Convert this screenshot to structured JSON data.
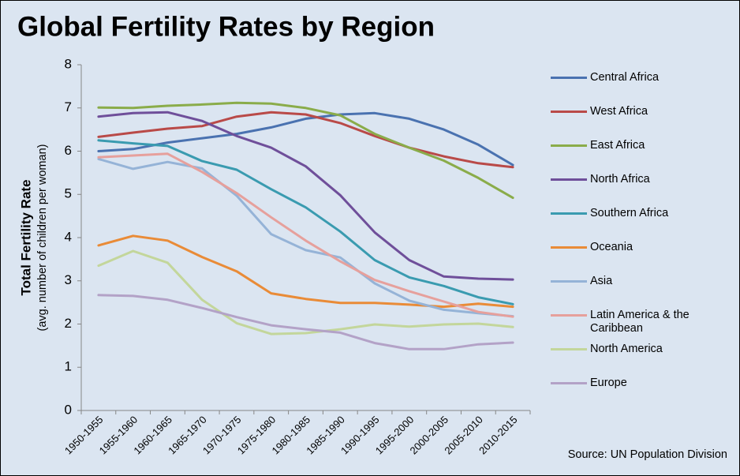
{
  "chart_data": {
    "type": "line",
    "title": "Global Fertility Rates by Region",
    "y_axis_label": "Total Fertility Rate",
    "y_axis_sublabel": "(avg. number of children per woman)",
    "source": "Source:  UN Population Division",
    "categories": [
      "1950-1955",
      "1955-1960",
      "1960-1965",
      "1965-1970",
      "1970-1975",
      "1975-1980",
      "1980-1985",
      "1985-1990",
      "1990-1995",
      "1995-2000",
      "2000-2005",
      "2005-2010",
      "2010-2015"
    ],
    "ylim": [
      0,
      8
    ],
    "yticks": [
      0,
      1,
      2,
      3,
      4,
      5,
      6,
      7,
      8
    ],
    "grid": false,
    "series": [
      {
        "name": "Central Africa",
        "color": "#4a72b0",
        "values": [
          6.0,
          6.05,
          6.2,
          6.3,
          6.4,
          6.55,
          6.75,
          6.85,
          6.88,
          6.75,
          6.5,
          6.15,
          5.68
        ]
      },
      {
        "name": "West Africa",
        "color": "#b94a48",
        "values": [
          6.33,
          6.43,
          6.52,
          6.58,
          6.8,
          6.9,
          6.85,
          6.65,
          6.35,
          6.08,
          5.88,
          5.72,
          5.63
        ]
      },
      {
        "name": "East Africa",
        "color": "#8aac4a",
        "values": [
          7.01,
          7.0,
          7.05,
          7.08,
          7.12,
          7.1,
          7.0,
          6.83,
          6.4,
          6.08,
          5.78,
          5.38,
          4.92
        ]
      },
      {
        "name": "North Africa",
        "color": "#6f4f9a",
        "values": [
          6.8,
          6.88,
          6.9,
          6.7,
          6.35,
          6.08,
          5.65,
          4.98,
          4.12,
          3.48,
          3.1,
          3.05,
          3.03
        ]
      },
      {
        "name": "Southern Africa",
        "color": "#3a9bb0",
        "values": [
          6.25,
          6.18,
          6.12,
          5.77,
          5.57,
          5.12,
          4.7,
          4.14,
          3.48,
          3.08,
          2.88,
          2.62,
          2.46
        ]
      },
      {
        "name": "Oceania",
        "color": "#e98b37",
        "values": [
          3.82,
          4.04,
          3.93,
          3.55,
          3.22,
          2.71,
          2.58,
          2.49,
          2.49,
          2.45,
          2.4,
          2.47,
          2.4
        ]
      },
      {
        "name": "Asia",
        "color": "#95b3d7",
        "values": [
          5.82,
          5.59,
          5.75,
          5.6,
          4.97,
          4.08,
          3.71,
          3.54,
          2.94,
          2.54,
          2.33,
          2.25,
          2.18
        ]
      },
      {
        "name": "Latin America & the Caribbean",
        "color": "#e6a09c",
        "values": [
          5.86,
          5.9,
          5.94,
          5.52,
          5.03,
          4.47,
          3.93,
          3.45,
          3.02,
          2.76,
          2.52,
          2.28,
          2.17
        ]
      },
      {
        "name": "North America",
        "color": "#c3d69b",
        "values": [
          3.35,
          3.69,
          3.42,
          2.56,
          2.02,
          1.77,
          1.79,
          1.88,
          1.99,
          1.94,
          1.99,
          2.01,
          1.93
        ]
      },
      {
        "name": "Europe",
        "color": "#b3a2c7",
        "values": [
          2.67,
          2.65,
          2.56,
          2.37,
          2.16,
          1.97,
          1.88,
          1.8,
          1.56,
          1.42,
          1.42,
          1.53,
          1.57
        ]
      }
    ]
  }
}
